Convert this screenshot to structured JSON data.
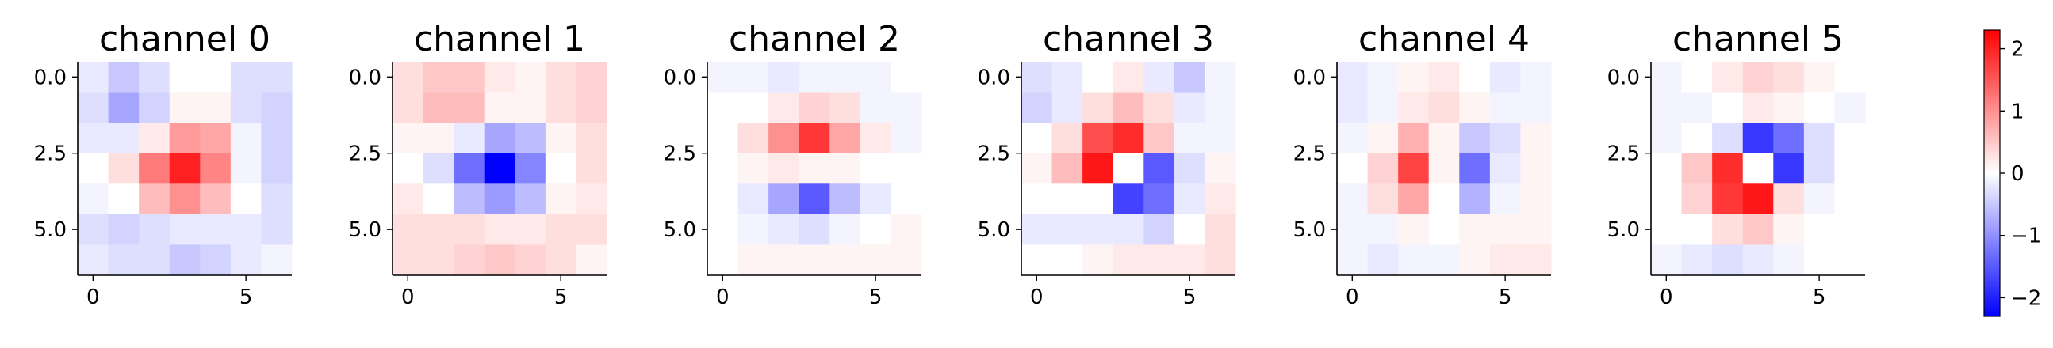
{
  "chart_data": {
    "type": "heatmap",
    "colormap": "bwr",
    "vmin": -2.3,
    "vmax": 2.3,
    "panels": [
      {
        "title": "channel 0",
        "x_ticks": [
          0,
          5
        ],
        "x_tick_labels": [
          "0",
          "5"
        ],
        "y_ticks": [
          0,
          2.5,
          5
        ],
        "y_tick_labels": [
          "0.0",
          "2.5",
          "5.0"
        ],
        "matrix": [
          [
            -0.2,
            -0.5,
            -0.3,
            0.0,
            0.0,
            -0.3,
            -0.3
          ],
          [
            -0.3,
            -0.8,
            -0.4,
            0.1,
            0.1,
            -0.3,
            -0.4
          ],
          [
            -0.2,
            -0.2,
            0.2,
            0.9,
            0.8,
            -0.1,
            -0.4
          ],
          [
            0.0,
            0.3,
            1.2,
            2.0,
            1.1,
            -0.1,
            -0.4
          ],
          [
            -0.1,
            0.0,
            0.6,
            1.0,
            0.6,
            0.0,
            -0.3
          ],
          [
            -0.3,
            -0.4,
            -0.3,
            -0.2,
            -0.2,
            -0.2,
            -0.3
          ],
          [
            -0.2,
            -0.3,
            -0.3,
            -0.5,
            -0.4,
            -0.2,
            -0.1
          ]
        ]
      },
      {
        "title": "channel 1",
        "x_ticks": [
          0,
          5
        ],
        "x_tick_labels": [
          "0",
          "5"
        ],
        "y_ticks": [
          0,
          2.5,
          5
        ],
        "y_tick_labels": [
          "0.0",
          "2.5",
          "5.0"
        ],
        "matrix": [
          [
            0.3,
            0.5,
            0.5,
            0.2,
            0.1,
            0.3,
            0.4
          ],
          [
            0.3,
            0.6,
            0.6,
            0.1,
            0.1,
            0.3,
            0.4
          ],
          [
            0.1,
            0.1,
            -0.2,
            -0.8,
            -0.6,
            0.1,
            0.3
          ],
          [
            0.0,
            -0.3,
            -1.3,
            -2.3,
            -1.1,
            0.0,
            0.3
          ],
          [
            0.2,
            0.0,
            -0.6,
            -0.9,
            -0.6,
            0.1,
            0.2
          ],
          [
            0.3,
            0.3,
            0.3,
            0.2,
            0.2,
            0.3,
            0.3
          ],
          [
            0.3,
            0.3,
            0.4,
            0.5,
            0.4,
            0.3,
            0.1
          ]
        ]
      },
      {
        "title": "channel 2",
        "x_ticks": [
          0,
          5
        ],
        "x_tick_labels": [
          "0",
          "5"
        ],
        "y_ticks": [
          0,
          2.5,
          5
        ],
        "y_tick_labels": [
          "0.0",
          "2.5",
          "5.0"
        ],
        "matrix": [
          [
            -0.1,
            -0.1,
            -0.2,
            -0.1,
            -0.1,
            -0.1,
            0.0
          ],
          [
            0.0,
            0.0,
            0.2,
            0.4,
            0.3,
            -0.1,
            -0.1
          ],
          [
            0.0,
            0.3,
            1.0,
            1.8,
            0.8,
            0.2,
            -0.1
          ],
          [
            0.0,
            0.1,
            0.2,
            0.1,
            0.1,
            0.0,
            0.0
          ],
          [
            0.0,
            -0.2,
            -0.8,
            -1.5,
            -0.6,
            -0.2,
            0.0
          ],
          [
            0.0,
            -0.1,
            -0.2,
            -0.3,
            -0.1,
            0.0,
            0.1
          ],
          [
            0.0,
            0.1,
            0.1,
            0.1,
            0.1,
            0.1,
            0.1
          ]
        ]
      },
      {
        "title": "channel 3",
        "x_ticks": [
          0,
          5
        ],
        "x_tick_labels": [
          "0",
          "5"
        ],
        "y_ticks": [
          0,
          2.5,
          5
        ],
        "y_tick_labels": [
          "0.0",
          "2.5",
          "5.0"
        ],
        "matrix": [
          [
            -0.3,
            -0.2,
            0.0,
            0.2,
            -0.2,
            -0.5,
            -0.1
          ],
          [
            -0.4,
            -0.2,
            0.3,
            0.6,
            0.3,
            -0.2,
            -0.1
          ],
          [
            0.0,
            0.3,
            1.6,
            1.9,
            0.5,
            -0.1,
            -0.1
          ],
          [
            0.1,
            0.6,
            2.1,
            0.0,
            -1.5,
            -0.3,
            0.1
          ],
          [
            0.0,
            0.0,
            0.0,
            -1.7,
            -1.3,
            -0.2,
            0.2
          ],
          [
            -0.2,
            -0.2,
            -0.2,
            -0.2,
            -0.4,
            0.0,
            0.3
          ],
          [
            0.0,
            0.0,
            0.1,
            0.2,
            0.2,
            0.2,
            0.3
          ]
        ]
      },
      {
        "title": "channel 4",
        "x_ticks": [
          0,
          5
        ],
        "x_tick_labels": [
          "0",
          "5"
        ],
        "y_ticks": [
          0,
          2.5,
          5
        ],
        "y_tick_labels": [
          "0.0",
          "2.5",
          "5.0"
        ],
        "matrix": [
          [
            -0.2,
            -0.1,
            0.1,
            0.2,
            0.0,
            -0.2,
            -0.1
          ],
          [
            -0.2,
            -0.1,
            0.2,
            0.3,
            0.1,
            -0.1,
            -0.1
          ],
          [
            -0.1,
            0.1,
            0.7,
            0.1,
            -0.5,
            -0.3,
            0.1
          ],
          [
            0.0,
            0.4,
            1.7,
            0.1,
            -1.3,
            -0.2,
            0.1
          ],
          [
            -0.1,
            0.3,
            0.8,
            0.0,
            -0.7,
            -0.1,
            0.1
          ],
          [
            -0.1,
            -0.1,
            0.1,
            0.0,
            0.1,
            0.1,
            0.1
          ],
          [
            -0.1,
            -0.2,
            -0.1,
            -0.1,
            0.1,
            0.2,
            0.2
          ]
        ]
      },
      {
        "title": "channel 5",
        "x_ticks": [
          0,
          5
        ],
        "x_tick_labels": [
          "0",
          "5"
        ],
        "y_ticks": [
          0,
          2.5,
          5
        ],
        "y_tick_labels": [
          "0.0",
          "2.5",
          "5.0"
        ],
        "matrix": [
          [
            -0.1,
            0.0,
            0.2,
            0.4,
            0.3,
            0.1,
            0.0
          ],
          [
            -0.1,
            -0.1,
            0.0,
            0.2,
            0.1,
            0.0,
            -0.1
          ],
          [
            -0.1,
            0.0,
            -0.3,
            -1.8,
            -1.3,
            -0.3,
            0.0
          ],
          [
            0.0,
            0.5,
            1.9,
            0.0,
            -1.8,
            -0.3,
            0.0
          ],
          [
            0.0,
            0.4,
            1.8,
            2.1,
            0.3,
            -0.1,
            0.0
          ],
          [
            0.0,
            0.0,
            0.3,
            0.5,
            0.1,
            0.0,
            0.0
          ],
          [
            -0.1,
            -0.2,
            -0.3,
            -0.2,
            -0.1,
            0.0,
            0.0
          ]
        ]
      }
    ],
    "colorbar": {
      "ticks": [
        -2,
        -1,
        0,
        1,
        2
      ],
      "tick_labels": [
        "−2",
        "−1",
        "0",
        "1",
        "2"
      ]
    }
  }
}
